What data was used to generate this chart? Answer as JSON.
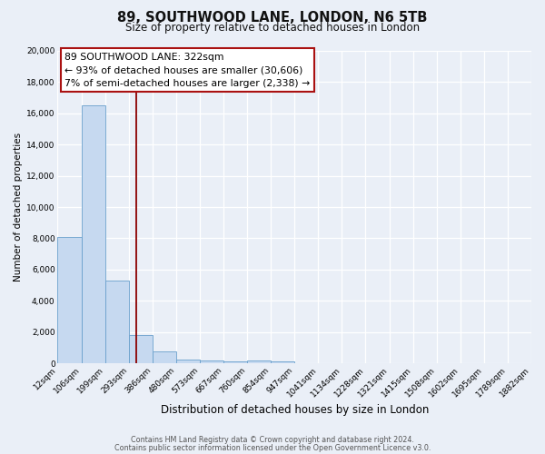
{
  "title": "89, SOUTHWOOD LANE, LONDON, N6 5TB",
  "subtitle": "Size of property relative to detached houses in London",
  "xlabel": "Distribution of detached houses by size in London",
  "ylabel": "Number of detached properties",
  "footer_line1": "Contains HM Land Registry data © Crown copyright and database right 2024.",
  "footer_line2": "Contains public sector information licensed under the Open Government Licence v3.0.",
  "bin_labels": [
    "12sqm",
    "106sqm",
    "199sqm",
    "293sqm",
    "386sqm",
    "480sqm",
    "573sqm",
    "667sqm",
    "760sqm",
    "854sqm",
    "947sqm",
    "1041sqm",
    "1134sqm",
    "1228sqm",
    "1321sqm",
    "1415sqm",
    "1508sqm",
    "1602sqm",
    "1695sqm",
    "1789sqm",
    "1882sqm"
  ],
  "bar_values": [
    8100,
    16500,
    5300,
    1800,
    750,
    250,
    150,
    100,
    150,
    100,
    0,
    0,
    0,
    0,
    0,
    0,
    0,
    0,
    0,
    0
  ],
  "bar_color": "#c6d9f0",
  "bar_edge_color": "#6aa0cc",
  "property_line_color": "#8b0000",
  "annotation_line1": "89 SOUTHWOOD LANE: 322sqm",
  "annotation_line2": "← 93% of detached houses are smaller (30,606)",
  "annotation_line3": "7% of semi-detached houses are larger (2,338) →",
  "annotation_box_facecolor": "#ffffff",
  "annotation_box_edgecolor": "#aa1111",
  "ylim": [
    0,
    20000
  ],
  "yticks": [
    0,
    2000,
    4000,
    6000,
    8000,
    10000,
    12000,
    14000,
    16000,
    18000,
    20000
  ],
  "background_color": "#eaeff7",
  "plot_bg_color": "#eaeff7",
  "grid_color": "#ffffff",
  "title_fontsize": 10.5,
  "subtitle_fontsize": 8.5,
  "xlabel_fontsize": 8.5,
  "ylabel_fontsize": 7.5,
  "tick_fontsize": 6.5,
  "annotation_fontsize": 7.8,
  "bin_edges": [
    12,
    106,
    199,
    293,
    386,
    480,
    573,
    667,
    760,
    854,
    947,
    1041,
    1134,
    1228,
    1321,
    1415,
    1508,
    1602,
    1695,
    1789,
    1882
  ],
  "property_sqm": 322
}
